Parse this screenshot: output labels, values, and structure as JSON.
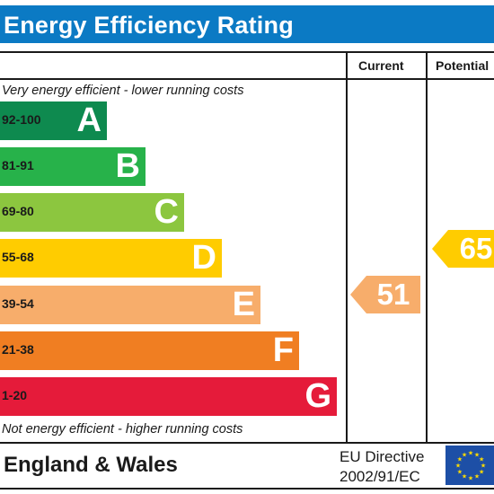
{
  "title": "Energy Efficiency Rating",
  "columns": {
    "current": "Current",
    "potential": "Potential"
  },
  "notes": {
    "top": "Very energy efficient - lower running costs",
    "bottom": "Not energy efficient - higher running costs"
  },
  "bands": [
    {
      "range": "92-100",
      "letter": "A",
      "color": "#0e8a4f"
    },
    {
      "range": "81-91",
      "letter": "B",
      "color": "#27b24a"
    },
    {
      "range": "69-80",
      "letter": "C",
      "color": "#8cc63f"
    },
    {
      "range": "55-68",
      "letter": "D",
      "color": "#ffcc00"
    },
    {
      "range": "39-54",
      "letter": "E",
      "color": "#f7ad6b"
    },
    {
      "range": "21-38",
      "letter": "F",
      "color": "#f07e22"
    },
    {
      "range": "1-20",
      "letter": "G",
      "color": "#e51b3a"
    }
  ],
  "ratings": {
    "current": {
      "value": "51",
      "band": "E",
      "color": "#f7ad6b"
    },
    "potential": {
      "value": "65",
      "band": "D",
      "color": "#ffcc00"
    }
  },
  "footer": {
    "region": "England & Wales",
    "directive_line1": "EU Directive",
    "directive_line2": "2002/91/EC",
    "flag_icon": "eu-flag-icon",
    "flag_colors": {
      "field": "#1d4fa6",
      "stars": "#ffdd00"
    }
  },
  "colors": {
    "title_bar": "#0b7ac4"
  }
}
